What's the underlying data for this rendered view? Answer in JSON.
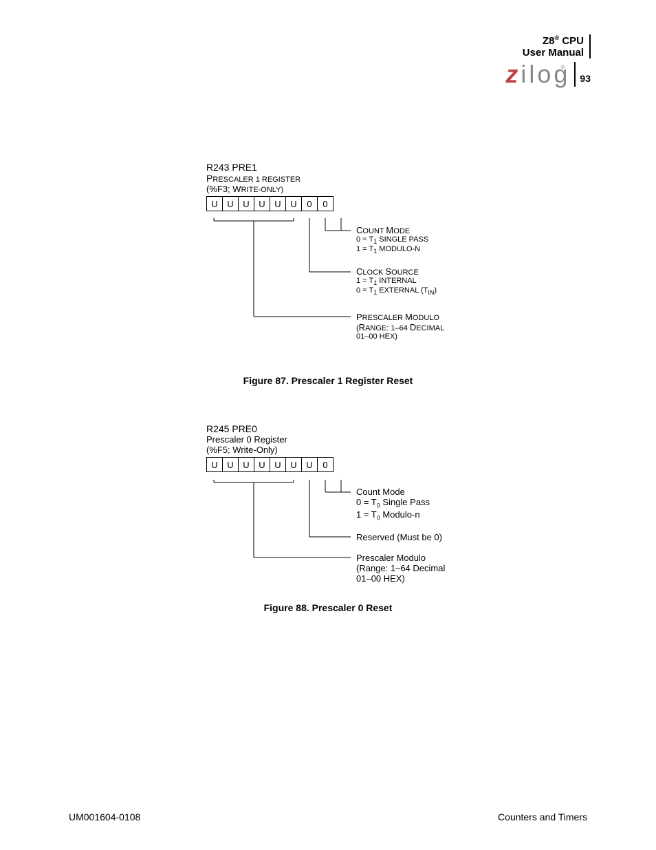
{
  "header": {
    "cpu_line_pre": "Z8",
    "cpu_line_post": " CPU",
    "sup": "®",
    "manual": "User Manual",
    "logo_z": "z",
    "logo_rest": "ilog",
    "logo_reg": "®",
    "page_num": "93"
  },
  "fig87": {
    "title": "R243  PRE1",
    "subtitle1_pre": "P",
    "subtitle1_rest": "RESCALER 1 REGISTER",
    "subtitle2": "(%F3; W",
    "subtitle2_rest": "RITE-ONLY)",
    "bits": [
      "U",
      "U",
      "U",
      "U",
      "U",
      "U",
      "0",
      "0"
    ],
    "desc1_hdr": "COUNT MODE",
    "desc1_l1a": "0 = T",
    "desc1_l1b": "  SINGLE PASS",
    "desc1_l2a": "1 = T",
    "desc1_l2b": "  MODULO-N",
    "desc2_hdr": "CLOCK SOURCE",
    "desc2_l1a": "1 = T",
    "desc2_l1b": "  INTERNAL",
    "desc2_l2a": "0 = T",
    "desc2_l2b": "  EXTERNAL (T",
    "desc2_l2c": ")",
    "desc3_l1": "PRESCALER MODULO",
    "desc3_l2": "(RANGE: 1–64 DECIMAL",
    "desc3_l3": " 01–00 HEX)",
    "caption": "Figure 87. Prescaler 1 Register Reset",
    "sub1": "1",
    "subIN": "IN"
  },
  "fig88": {
    "title": "R245  PRE0",
    "subtitle1": "Prescaler 0 Register",
    "subtitle2": "(%F5; Write-Only)",
    "bits": [
      "U",
      "U",
      "U",
      "U",
      "U",
      "U",
      "U",
      "0"
    ],
    "desc1_hdr": "Count Mode",
    "desc1_l1a": "0 = T",
    "desc1_l1b": "  Single Pass",
    "desc1_l2a": "1 = T",
    "desc1_l2b": "  Modulo-n",
    "desc2": "Reserved (Must be 0)",
    "desc3_l1": "Prescaler Modulo",
    "desc3_l2": "(Range: 1–64 Decimal",
    "desc3_l3": " 01–00 HEX)",
    "caption": "Figure 88. Prescaler 0 Reset",
    "sub0": "0"
  },
  "footer": {
    "left": "UM001604-0108",
    "right": "Counters and Timers"
  }
}
